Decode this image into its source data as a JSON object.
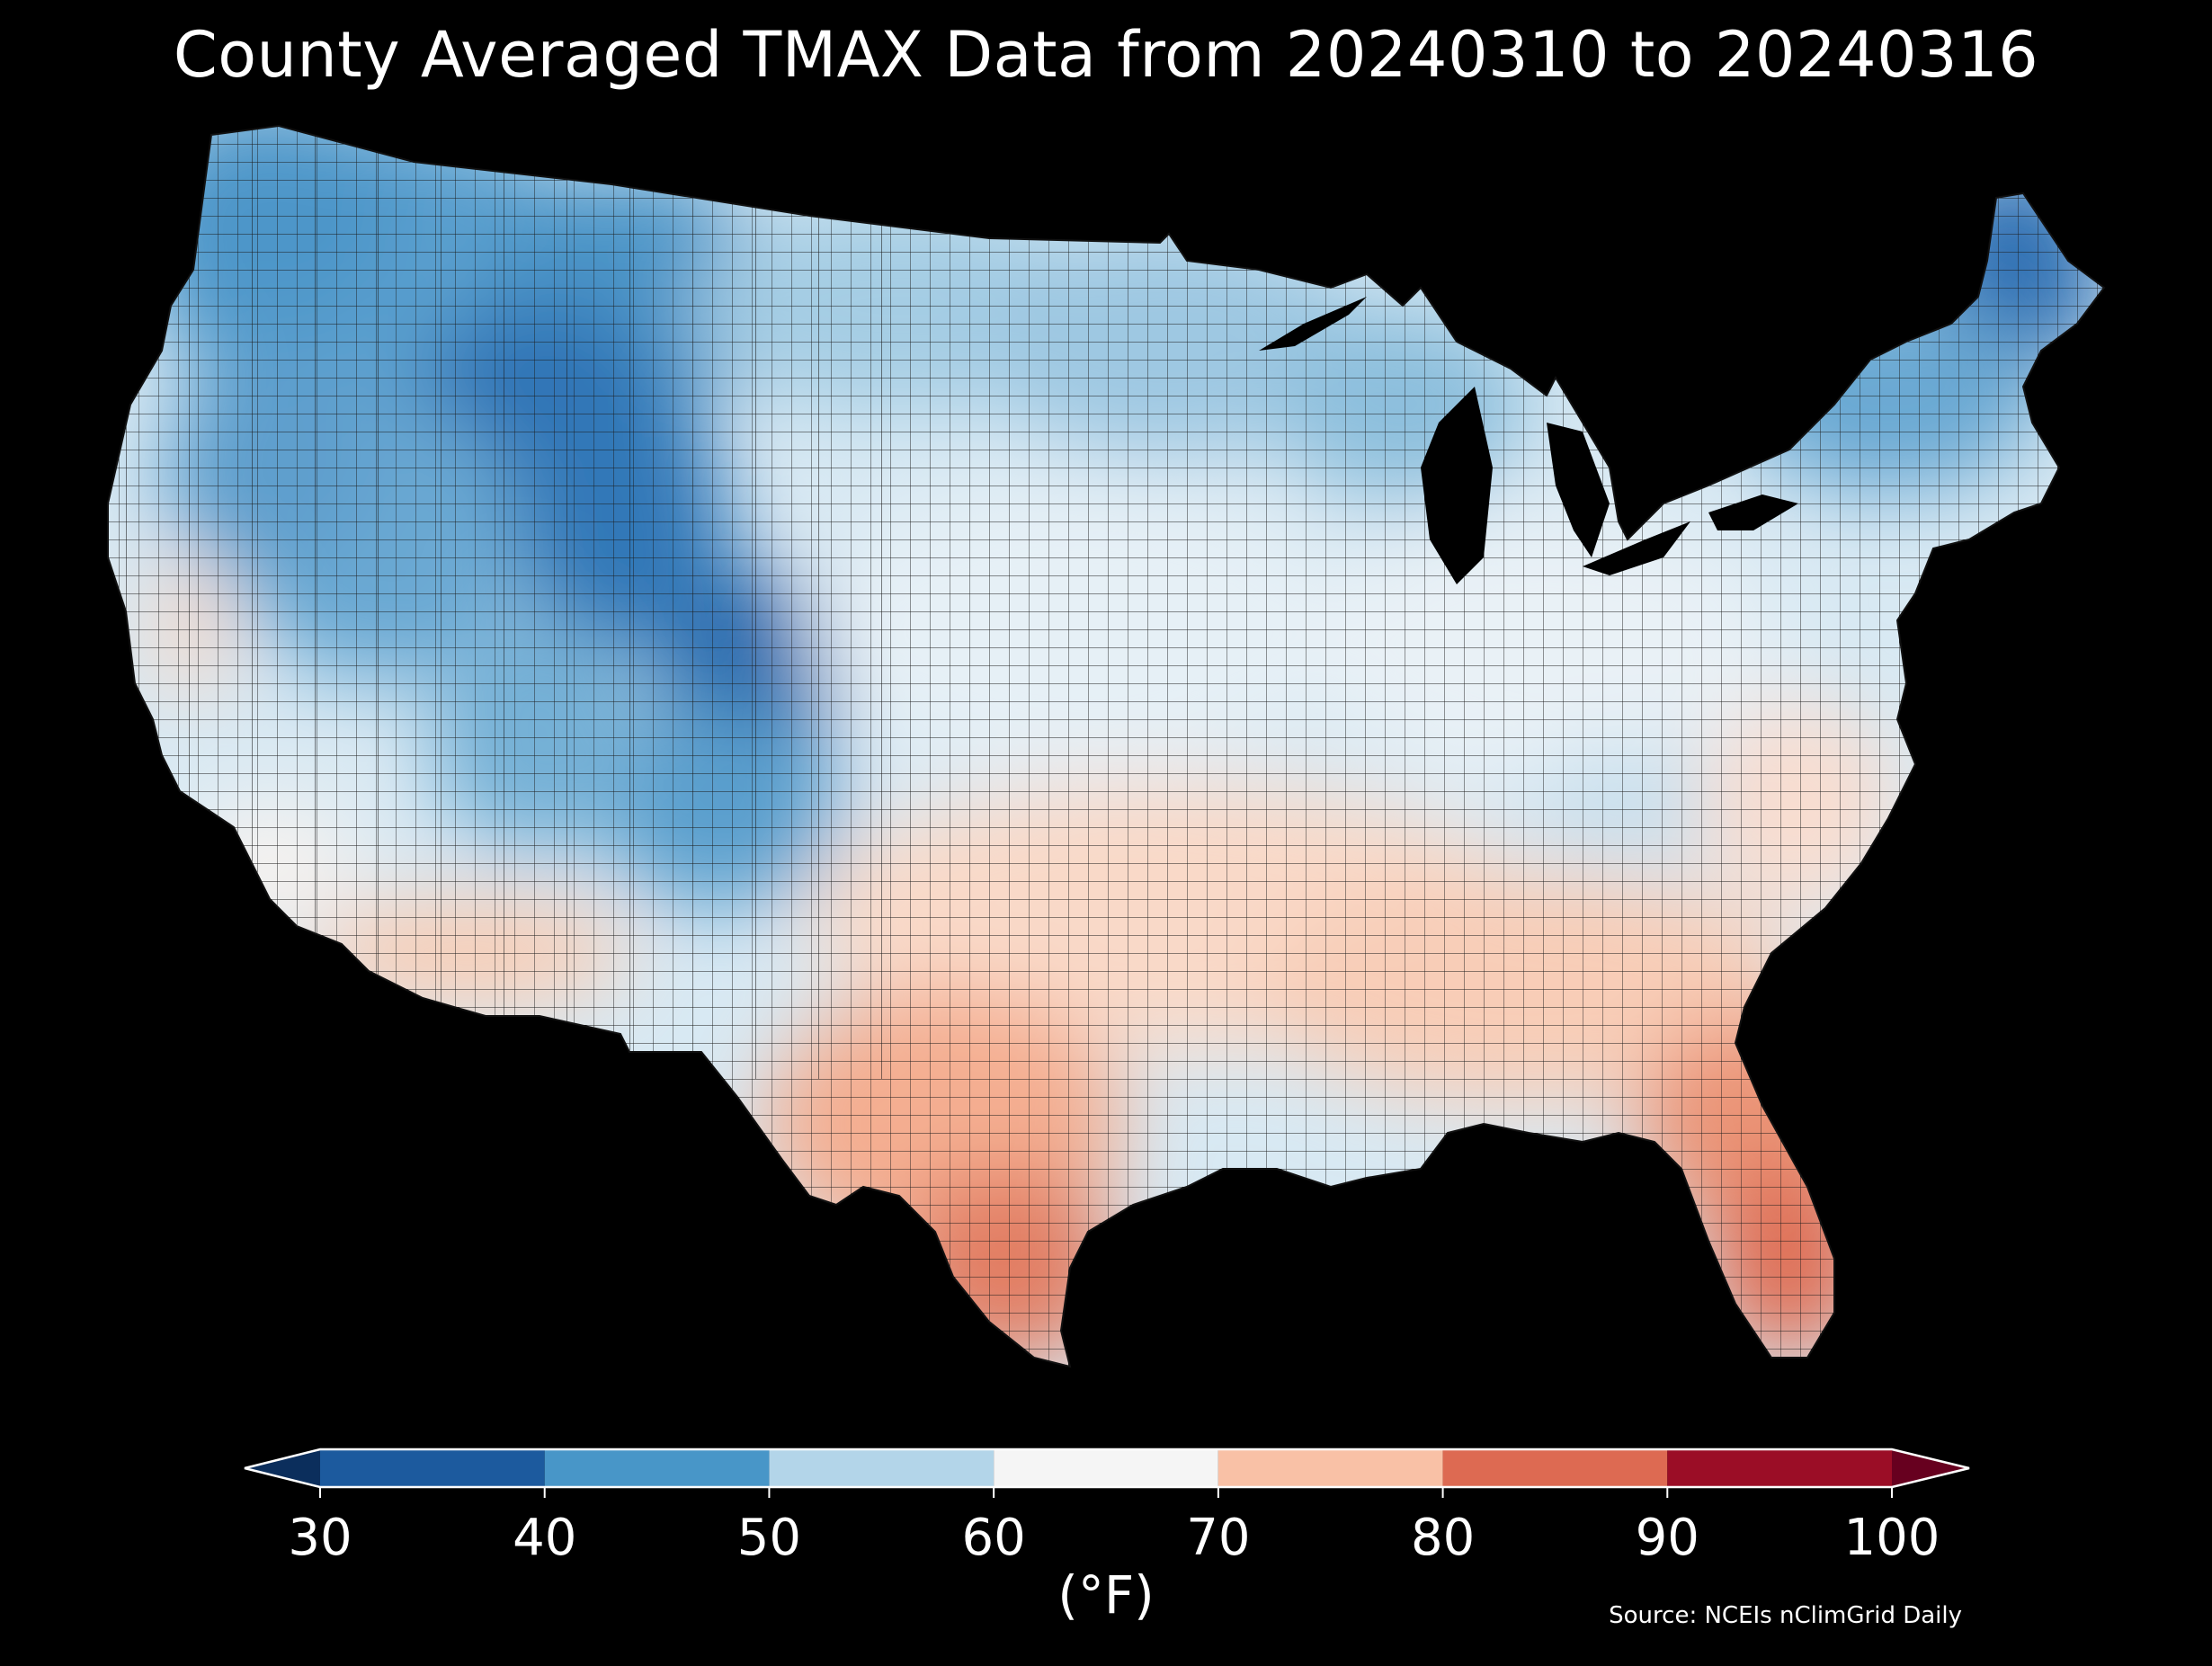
{
  "title": "County Averaged TMAX Data from 20240310 to 20240316",
  "colorbar": {
    "label": "(°F)",
    "ticks": [
      "30",
      "40",
      "50",
      "60",
      "70",
      "80",
      "90",
      "100"
    ],
    "bins": [
      {
        "from": 30,
        "to": 40,
        "color": "#1c5a9e"
      },
      {
        "from": 40,
        "to": 50,
        "color": "#4896c8"
      },
      {
        "from": 50,
        "to": 60,
        "color": "#b3d5e9"
      },
      {
        "from": 60,
        "to": 70,
        "color": "#f5f5f5"
      },
      {
        "from": 70,
        "to": 80,
        "color": "#f9c1a6"
      },
      {
        "from": 80,
        "to": 90,
        "color": "#dd6a52"
      },
      {
        "from": 90,
        "to": 100,
        "color": "#9b0d26"
      }
    ],
    "under_color": "#0b2e5c",
    "over_color": "#67001f"
  },
  "source": "Source: NCEIs nClimGrid Daily",
  "map": {
    "region": "Contiguous United States",
    "background": "#000000",
    "boundary_color": "#222222"
  }
}
